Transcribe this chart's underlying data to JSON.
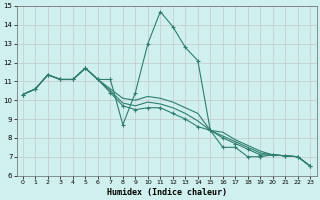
{
  "xlabel": "Humidex (Indice chaleur)",
  "background_color": "#cff0ee",
  "grid_color": "#c0c0c0",
  "line_color": "#2e7d6e",
  "xlim": [
    -0.5,
    23.5
  ],
  "ylim": [
    6,
    15
  ],
  "xticks": [
    0,
    1,
    2,
    3,
    4,
    5,
    6,
    7,
    8,
    9,
    10,
    11,
    12,
    13,
    14,
    15,
    16,
    17,
    18,
    19,
    20,
    21,
    22,
    23
  ],
  "yticks": [
    6,
    7,
    8,
    9,
    10,
    11,
    12,
    13,
    14,
    15
  ],
  "lines": [
    {
      "x": [
        0,
        1,
        2,
        3,
        4,
        5,
        6,
        7,
        8,
        9,
        10,
        11,
        12,
        13,
        14,
        15,
        16,
        17,
        18,
        19,
        20,
        21,
        22,
        23
      ],
      "y": [
        10.3,
        10.6,
        11.35,
        11.1,
        11.1,
        11.7,
        11.1,
        11.1,
        8.7,
        10.4,
        13.0,
        14.7,
        13.9,
        12.8,
        12.1,
        8.4,
        7.5,
        7.5,
        7.0,
        7.0,
        7.1,
        7.05,
        7.0,
        6.5
      ],
      "has_markers": true
    },
    {
      "x": [
        0,
        1,
        2,
        3,
        4,
        5,
        6,
        7,
        8,
        9,
        10,
        11,
        12,
        13,
        14,
        15,
        16,
        17,
        18,
        19,
        20,
        21,
        22,
        23
      ],
      "y": [
        10.3,
        10.6,
        11.35,
        11.1,
        11.1,
        11.7,
        11.1,
        10.4,
        9.7,
        9.5,
        9.6,
        9.6,
        9.3,
        9.0,
        8.6,
        8.4,
        8.0,
        7.7,
        7.4,
        7.1,
        7.1,
        7.05,
        7.0,
        6.5
      ],
      "has_markers": true
    },
    {
      "x": [
        0,
        1,
        2,
        3,
        4,
        5,
        6,
        7,
        8,
        9,
        10,
        11,
        12,
        13,
        14,
        15,
        16,
        17,
        18,
        19,
        20,
        21,
        22,
        23
      ],
      "y": [
        10.3,
        10.6,
        11.35,
        11.1,
        11.1,
        11.7,
        11.1,
        10.5,
        9.85,
        9.7,
        9.9,
        9.8,
        9.6,
        9.3,
        8.9,
        8.4,
        8.1,
        7.8,
        7.5,
        7.2,
        7.1,
        7.05,
        7.0,
        6.5
      ],
      "has_markers": false
    },
    {
      "x": [
        0,
        1,
        2,
        3,
        4,
        5,
        6,
        7,
        8,
        9,
        10,
        11,
        12,
        13,
        14,
        15,
        16,
        17,
        18,
        19,
        20,
        21,
        22,
        23
      ],
      "y": [
        10.3,
        10.6,
        11.35,
        11.1,
        11.1,
        11.7,
        11.1,
        10.6,
        10.1,
        10.0,
        10.2,
        10.1,
        9.9,
        9.6,
        9.3,
        8.4,
        8.3,
        7.9,
        7.6,
        7.3,
        7.1,
        7.05,
        7.0,
        6.5
      ],
      "has_markers": false
    }
  ]
}
